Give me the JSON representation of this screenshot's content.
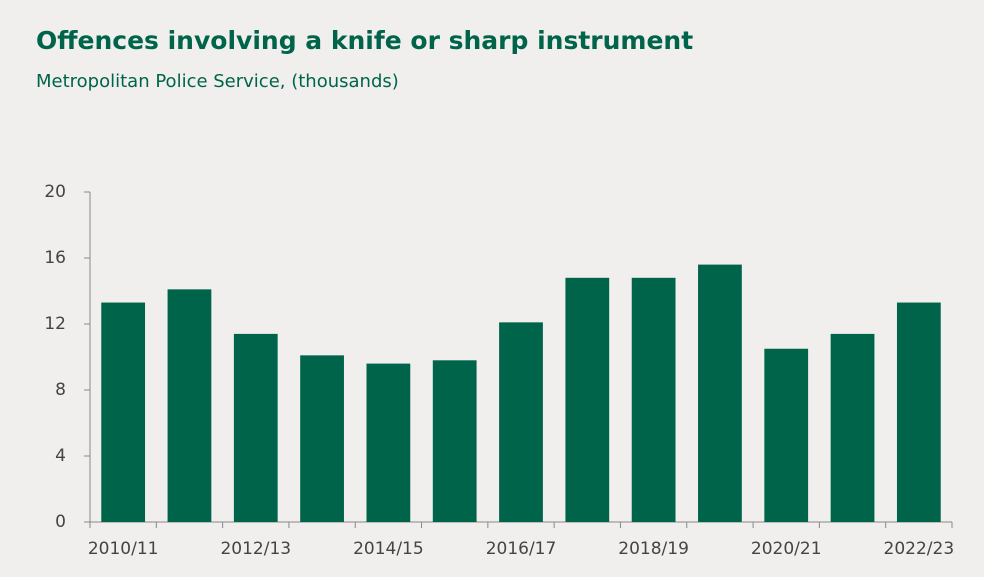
{
  "chart_data": {
    "type": "bar",
    "title": "Offences involving a knife or sharp instrument",
    "subtitle": "Metropolitan Police Service, (thousands)",
    "categories": [
      "2010/11",
      null,
      "2012/13",
      null,
      "2014/15",
      null,
      "2016/17",
      null,
      "2018/19",
      null,
      "2020/21",
      null,
      "2022/23"
    ],
    "values": [
      13.3,
      14.1,
      11.4,
      10.1,
      9.6,
      9.8,
      12.1,
      14.8,
      14.8,
      15.6,
      10.5,
      11.4,
      13.3
    ],
    "color": "#00644a",
    "ylim": [
      0,
      20
    ],
    "yticks": [
      0,
      4,
      8,
      12,
      16,
      20
    ],
    "grid": false
  }
}
